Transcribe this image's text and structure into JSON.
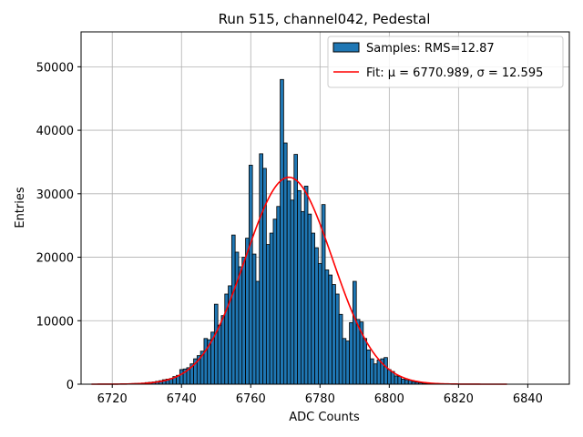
{
  "chart_data": {
    "type": "bar",
    "title": "Run 515, channel042, Pedestal",
    "xlabel": "ADC Counts",
    "ylabel": "Entries",
    "xlim": [
      6711,
      6852
    ],
    "ylim": [
      0,
      55500
    ],
    "xticks": [
      6720,
      6740,
      6760,
      6780,
      6800,
      6820,
      6840
    ],
    "yticks": [
      0,
      10000,
      20000,
      30000,
      40000,
      50000
    ],
    "grid": true,
    "legend_position": "top-right",
    "colors": {
      "bar_fill": "#1f77b4",
      "bar_edge": "#000000",
      "fit_line": "#ff0000",
      "grid": "#b0b0b0"
    },
    "histogram": {
      "name": "Samples: RMS=12.87",
      "bin_width": 1,
      "bins": [
        [
          6725,
          80
        ],
        [
          6726,
          100
        ],
        [
          6727,
          120
        ],
        [
          6728,
          150
        ],
        [
          6729,
          180
        ],
        [
          6730,
          250
        ],
        [
          6731,
          300
        ],
        [
          6732,
          350
        ],
        [
          6733,
          450
        ],
        [
          6734,
          550
        ],
        [
          6735,
          700
        ],
        [
          6736,
          800
        ],
        [
          6737,
          900
        ],
        [
          6738,
          1200
        ],
        [
          6739,
          1400
        ],
        [
          6740,
          2300
        ],
        [
          6741,
          2400
        ],
        [
          6742,
          2600
        ],
        [
          6743,
          3200
        ],
        [
          6744,
          4000
        ],
        [
          6745,
          4500
        ],
        [
          6746,
          5200
        ],
        [
          6747,
          7200
        ],
        [
          6748,
          7000
        ],
        [
          6749,
          8200
        ],
        [
          6750,
          12600
        ],
        [
          6751,
          9300
        ],
        [
          6752,
          10800
        ],
        [
          6753,
          14200
        ],
        [
          6754,
          15500
        ],
        [
          6755,
          23500
        ],
        [
          6756,
          20800
        ],
        [
          6757,
          18500
        ],
        [
          6758,
          20000
        ],
        [
          6759,
          23000
        ],
        [
          6760,
          34500
        ],
        [
          6761,
          20500
        ],
        [
          6762,
          16200
        ],
        [
          6763,
          36300
        ],
        [
          6764,
          34000
        ],
        [
          6765,
          22000
        ],
        [
          6766,
          23800
        ],
        [
          6767,
          26000
        ],
        [
          6768,
          28000
        ],
        [
          6769,
          48000
        ],
        [
          6770,
          38000
        ],
        [
          6771,
          32000
        ],
        [
          6772,
          29000
        ],
        [
          6773,
          36200
        ],
        [
          6774,
          30500
        ],
        [
          6775,
          27200
        ],
        [
          6776,
          31200
        ],
        [
          6777,
          26800
        ],
        [
          6778,
          23800
        ],
        [
          6779,
          21500
        ],
        [
          6780,
          19000
        ],
        [
          6781,
          28300
        ],
        [
          6782,
          18000
        ],
        [
          6783,
          17200
        ],
        [
          6784,
          15700
        ],
        [
          6785,
          14200
        ],
        [
          6786,
          11000
        ],
        [
          6787,
          7200
        ],
        [
          6788,
          6800
        ],
        [
          6789,
          9700
        ],
        [
          6790,
          16200
        ],
        [
          6791,
          10200
        ],
        [
          6792,
          9800
        ],
        [
          6793,
          7200
        ],
        [
          6794,
          5400
        ],
        [
          6795,
          4000
        ],
        [
          6796,
          3200
        ],
        [
          6797,
          3800
        ],
        [
          6798,
          4000
        ],
        [
          6799,
          4200
        ],
        [
          6800,
          2300
        ],
        [
          6801,
          2000
        ],
        [
          6802,
          1300
        ],
        [
          6803,
          1200
        ],
        [
          6804,
          800
        ],
        [
          6805,
          700
        ],
        [
          6806,
          600
        ],
        [
          6807,
          400
        ],
        [
          6808,
          300
        ],
        [
          6809,
          200
        ],
        [
          6810,
          150
        ],
        [
          6811,
          100
        ],
        [
          6812,
          80
        ]
      ]
    },
    "fit": {
      "name": "Fit: μ = 6770.989, σ = 12.595",
      "type": "gaussian",
      "mu": 6770.989,
      "sigma": 12.595,
      "amplitude": 32600,
      "x_range": [
        6714,
        6834
      ]
    }
  }
}
